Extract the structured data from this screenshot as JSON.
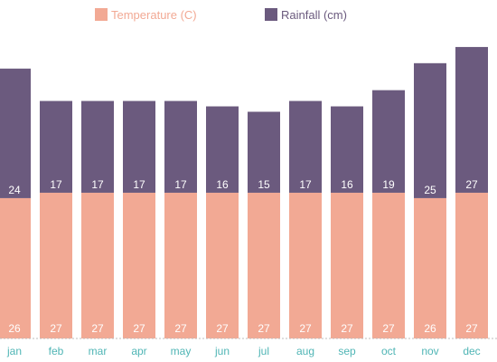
{
  "chart_data": {
    "type": "bar",
    "stacked": true,
    "categories": [
      "jan",
      "feb",
      "mar",
      "apr",
      "may",
      "jun",
      "jul",
      "aug",
      "sep",
      "oct",
      "nov",
      "dec"
    ],
    "series": [
      {
        "name": "Temperature (C)",
        "color": "#f2a994",
        "values": [
          26,
          27,
          27,
          27,
          27,
          27,
          27,
          27,
          27,
          27,
          26,
          27
        ]
      },
      {
        "name": "Rainfall (cm)",
        "color": "#6b5a7e",
        "values": [
          24,
          17,
          17,
          17,
          17,
          16,
          15,
          17,
          16,
          19,
          25,
          27
        ]
      }
    ],
    "legend_position": "top",
    "ylim": [
      0,
      56
    ],
    "grid": false,
    "tick_label_color": "#4fb5b5"
  }
}
